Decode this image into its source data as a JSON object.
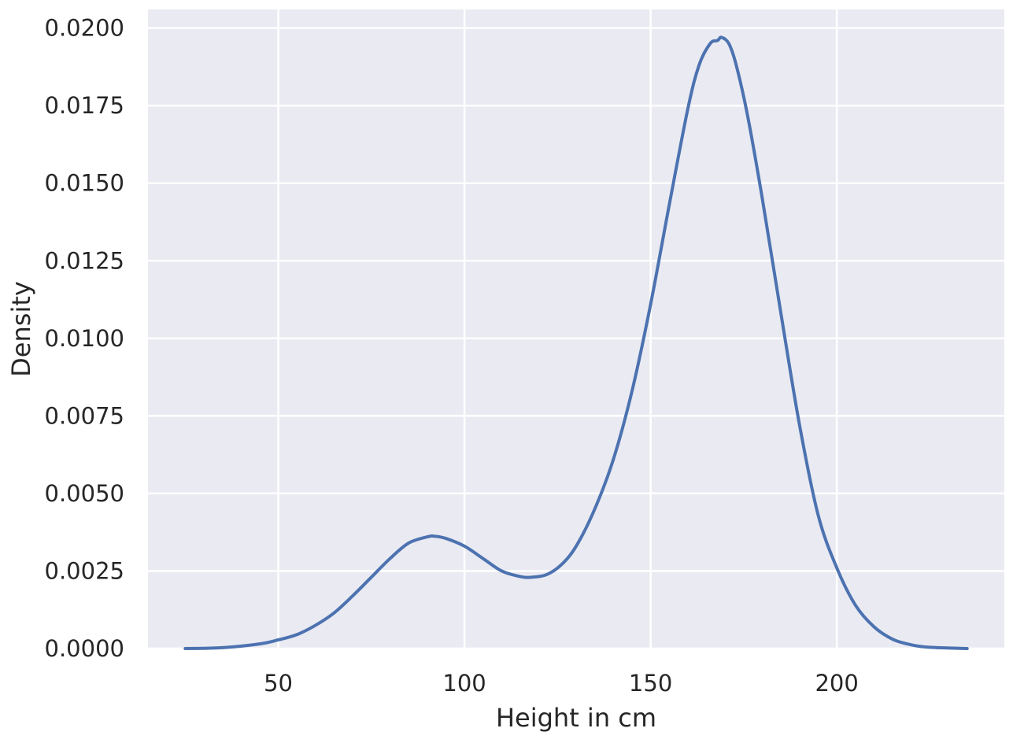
{
  "chart_data": {
    "type": "line",
    "title": "",
    "xlabel": "Height in cm",
    "ylabel": "Density",
    "xlim": [
      15,
      245
    ],
    "ylim": [
      0,
      0.0206
    ],
    "xticks": [
      50,
      100,
      150,
      200
    ],
    "xtick_labels": [
      "50",
      "100",
      "150",
      "200"
    ],
    "yticks": [
      0,
      0.0025,
      0.005,
      0.0075,
      0.01,
      0.0125,
      0.015,
      0.0175,
      0.02
    ],
    "ytick_labels": [
      "0.0000",
      "0.0025",
      "0.0050",
      "0.0075",
      "0.0100",
      "0.0125",
      "0.0150",
      "0.0175",
      "0.0200"
    ],
    "grid": true,
    "colors": {
      "background": "#eaeaf2",
      "grid": "#ffffff",
      "line": "#4c72b0"
    },
    "series": [
      {
        "x": [
          25,
          35,
          45,
          50,
          55,
          60,
          65,
          70,
          75,
          80,
          85,
          90,
          92,
          95,
          100,
          105,
          110,
          115,
          118,
          122,
          126,
          130,
          135,
          140,
          145,
          150,
          155,
          160,
          163,
          166,
          168,
          169,
          171,
          173,
          176,
          180,
          185,
          190,
          195,
          200,
          205,
          210,
          215,
          220,
          225,
          235
        ],
        "y": [
          0.0,
          3e-05,
          0.00015,
          0.00028,
          0.00045,
          0.00075,
          0.00115,
          0.0017,
          0.0023,
          0.0029,
          0.0034,
          0.0036,
          0.00362,
          0.00355,
          0.0033,
          0.0029,
          0.0025,
          0.00232,
          0.0023,
          0.00238,
          0.0027,
          0.0033,
          0.0045,
          0.0061,
          0.0083,
          0.0111,
          0.0143,
          0.0174,
          0.0188,
          0.0195,
          0.0196,
          0.0197,
          0.0195,
          0.0188,
          0.0172,
          0.0145,
          0.0108,
          0.0072,
          0.0043,
          0.0026,
          0.0014,
          0.0007,
          0.0003,
          0.00012,
          4e-05,
          0.0
        ]
      }
    ]
  }
}
